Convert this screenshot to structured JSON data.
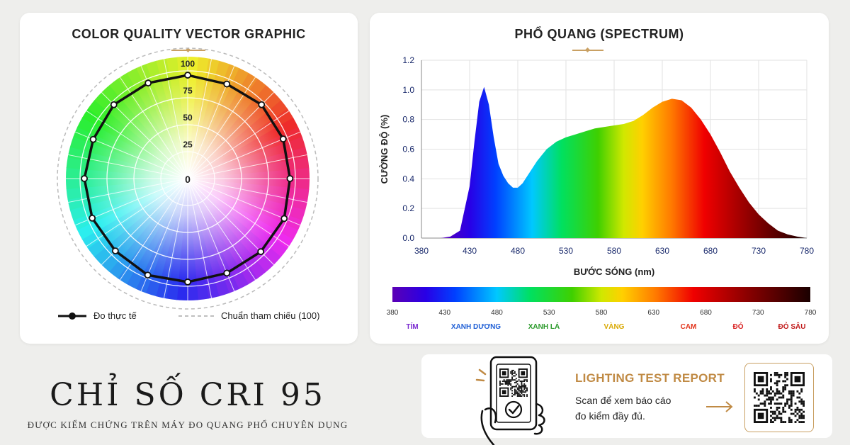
{
  "radar": {
    "title": "COLOR QUALITY VECTOR GRAPHIC",
    "ring_labels": [
      "100",
      "75",
      "50",
      "25",
      "0"
    ],
    "legend_measured": "Đo thực tế",
    "legend_reference": "Chuẩn tham chiếu (100)"
  },
  "spectrum": {
    "title": "PHỔ QUANG (SPECTRUM)",
    "colorbar_ticks": [
      "380",
      "430",
      "480",
      "530",
      "580",
      "630",
      "680",
      "730",
      "780"
    ],
    "color_names": [
      {
        "label": "TÍM",
        "color": "#7a2ad0"
      },
      {
        "label": "XANH DƯƠNG",
        "color": "#1f5fd6"
      },
      {
        "label": "XANH LÁ",
        "color": "#2a9a2a"
      },
      {
        "label": "VÀNG",
        "color": "#d9a800"
      },
      {
        "label": "CAM",
        "color": "#e2331a"
      },
      {
        "label": "ĐỎ",
        "color": "#d81f1f"
      },
      {
        "label": "ĐỎ SÂU",
        "color": "#c01818"
      }
    ]
  },
  "chart_data": [
    {
      "type": "radar",
      "title": "COLOR QUALITY VECTOR GRAPHIC",
      "rlim": [
        0,
        100
      ],
      "r_ticks": [
        0,
        25,
        50,
        75,
        100
      ],
      "series": [
        {
          "name": "Đo thực tế",
          "values": [
            96,
            95,
            97,
            96,
            95,
            97,
            96,
            95,
            96,
            97,
            95,
            96,
            96,
            95,
            97,
            96
          ]
        },
        {
          "name": "Chuẩn tham chiếu (100)",
          "values": [
            100,
            100,
            100,
            100,
            100,
            100,
            100,
            100,
            100,
            100,
            100,
            100,
            100,
            100,
            100,
            100
          ]
        }
      ],
      "grid": true,
      "legend": "bottom"
    },
    {
      "type": "area",
      "title": "PHỔ QUANG (SPECTRUM)",
      "xlabel": "BƯỚC SÓNG (nm)",
      "ylabel": "CƯỜNG ĐỘ (%)",
      "xlim": [
        380,
        780
      ],
      "ylim": [
        0,
        1.2
      ],
      "x_ticks": [
        380,
        430,
        480,
        530,
        580,
        630,
        680,
        730,
        780
      ],
      "y_ticks": [
        "0.0",
        "0.2",
        "0.4",
        "0.6",
        "0.8",
        "1.0",
        "1.2"
      ],
      "x": [
        400,
        410,
        420,
        430,
        435,
        440,
        445,
        450,
        455,
        460,
        465,
        470,
        475,
        480,
        485,
        490,
        500,
        510,
        520,
        530,
        540,
        550,
        560,
        570,
        580,
        590,
        600,
        610,
        620,
        630,
        640,
        650,
        660,
        670,
        680,
        690,
        700,
        710,
        720,
        730,
        740,
        750,
        760,
        770,
        780
      ],
      "values": [
        0.0,
        0.01,
        0.05,
        0.35,
        0.65,
        0.92,
        1.02,
        0.9,
        0.68,
        0.5,
        0.42,
        0.37,
        0.34,
        0.34,
        0.37,
        0.42,
        0.52,
        0.6,
        0.65,
        0.68,
        0.7,
        0.72,
        0.74,
        0.75,
        0.76,
        0.77,
        0.79,
        0.83,
        0.88,
        0.92,
        0.94,
        0.93,
        0.88,
        0.8,
        0.7,
        0.58,
        0.45,
        0.34,
        0.24,
        0.16,
        0.1,
        0.05,
        0.025,
        0.01,
        0.0
      ],
      "grid": true
    }
  ],
  "hero": {
    "title": "CHỈ SỐ CRI 95",
    "subtitle": "ĐƯỢC KIỂM CHỨNG TRÊN MÁY ĐO QUANG PHỔ CHUYÊN DỤNG"
  },
  "report": {
    "title": "LIGHTING TEST REPORT",
    "description": "Scan để xem báo cáo\nđo kiểm đầy đủ.",
    "accent": "#c08a44"
  },
  "icons": [
    "phone-scan-icon",
    "qr-code-icon",
    "check-icon",
    "arrow-right-icon"
  ]
}
